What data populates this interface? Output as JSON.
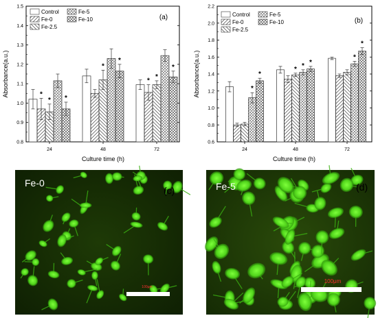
{
  "chart_data": [
    {
      "type": "bar",
      "panel_label": "(a)",
      "xlabel": "Culture time (h)",
      "ylabel": "Absorbance(a.u.)",
      "ylim": [
        0.8,
        1.5
      ],
      "yticks": [
        "0.8",
        "0.9",
        "1.0",
        "1.1",
        "1.2",
        "1.3",
        "1.4",
        "1.5"
      ],
      "categories": [
        "24",
        "48",
        "72"
      ],
      "legend_position": "top-left",
      "series": [
        {
          "name": "Control",
          "values": [
            1.02,
            1.14,
            1.095
          ],
          "errors": [
            0.05,
            0.035,
            0.025
          ],
          "sig": [
            false,
            false,
            false
          ]
        },
        {
          "name": "Fe-0",
          "values": [
            0.97,
            1.05,
            1.055
          ],
          "errors": [
            0.055,
            0.02,
            0.04
          ],
          "sig": [
            true,
            false,
            true
          ]
        },
        {
          "name": "Fe-2.5",
          "values": [
            0.955,
            1.12,
            1.095
          ],
          "errors": [
            0.04,
            0.05,
            0.02
          ],
          "sig": [
            true,
            true,
            true
          ]
        },
        {
          "name": "Fe-5",
          "values": [
            1.115,
            1.23,
            1.245
          ],
          "errors": [
            0.035,
            0.05,
            0.03
          ],
          "sig": [
            false,
            false,
            false
          ]
        },
        {
          "name": "Fe-10",
          "values": [
            0.97,
            1.165,
            1.135
          ],
          "errors": [
            0.035,
            0.035,
            0.03
          ],
          "sig": [
            true,
            true,
            true
          ]
        }
      ],
      "top_stars": [
        [
          false,
          false,
          false,
          false,
          false
        ],
        [
          false,
          false,
          false,
          true,
          false
        ],
        [
          false,
          false,
          false,
          false,
          false
        ]
      ]
    },
    {
      "type": "bar",
      "panel_label": "(b)",
      "xlabel": "Culture time (h)",
      "ylabel": "Absorbance(a.u.)",
      "ylim": [
        0.6,
        2.2
      ],
      "yticks": [
        "0.6",
        "0.8",
        "1.0",
        "1.2",
        "1.4",
        "1.6",
        "1.8",
        "2.0",
        "2.2"
      ],
      "categories": [
        "24",
        "48",
        "72"
      ],
      "legend_position": "top-left",
      "series": [
        {
          "name": "Control",
          "values": [
            1.25,
            1.45,
            1.585
          ],
          "errors": [
            0.06,
            0.04,
            0.015
          ],
          "sig": [
            false,
            false,
            false
          ]
        },
        {
          "name": "Fe-0",
          "values": [
            0.8,
            1.34,
            1.38
          ],
          "errors": [
            0.02,
            0.04,
            0.02
          ],
          "sig": [
            false,
            false,
            false
          ]
        },
        {
          "name": "Fe-2.5",
          "values": [
            0.81,
            1.39,
            1.42
          ],
          "errors": [
            0.02,
            0.02,
            0.03
          ],
          "sig": [
            false,
            true,
            false
          ]
        },
        {
          "name": "Fe-5",
          "values": [
            1.12,
            1.42,
            1.52
          ],
          "errors": [
            0.06,
            0.03,
            0.03
          ],
          "sig": [
            true,
            true,
            true
          ]
        },
        {
          "name": "Fe-10",
          "values": [
            1.32,
            1.46,
            1.67
          ],
          "errors": [
            0.03,
            0.03,
            0.04
          ],
          "sig": [
            true,
            true,
            true
          ]
        }
      ],
      "top_stars": [
        [
          false,
          false,
          false,
          false,
          false
        ],
        [
          false,
          false,
          false,
          false,
          true
        ],
        [
          false,
          false,
          false,
          false,
          false
        ]
      ]
    }
  ],
  "micrographs": [
    {
      "sample_label": "Fe-0",
      "panel_label": "(c)",
      "scale_text": "100μm",
      "scale_bar": true
    },
    {
      "sample_label": "Fe-5",
      "panel_label": "(d)",
      "scale_text": "100μm",
      "scale_bar": true
    }
  ],
  "colors": {
    "cell_green": "#5be61e",
    "background": "#0e1a02",
    "scale_text": "#ff2a2a"
  }
}
